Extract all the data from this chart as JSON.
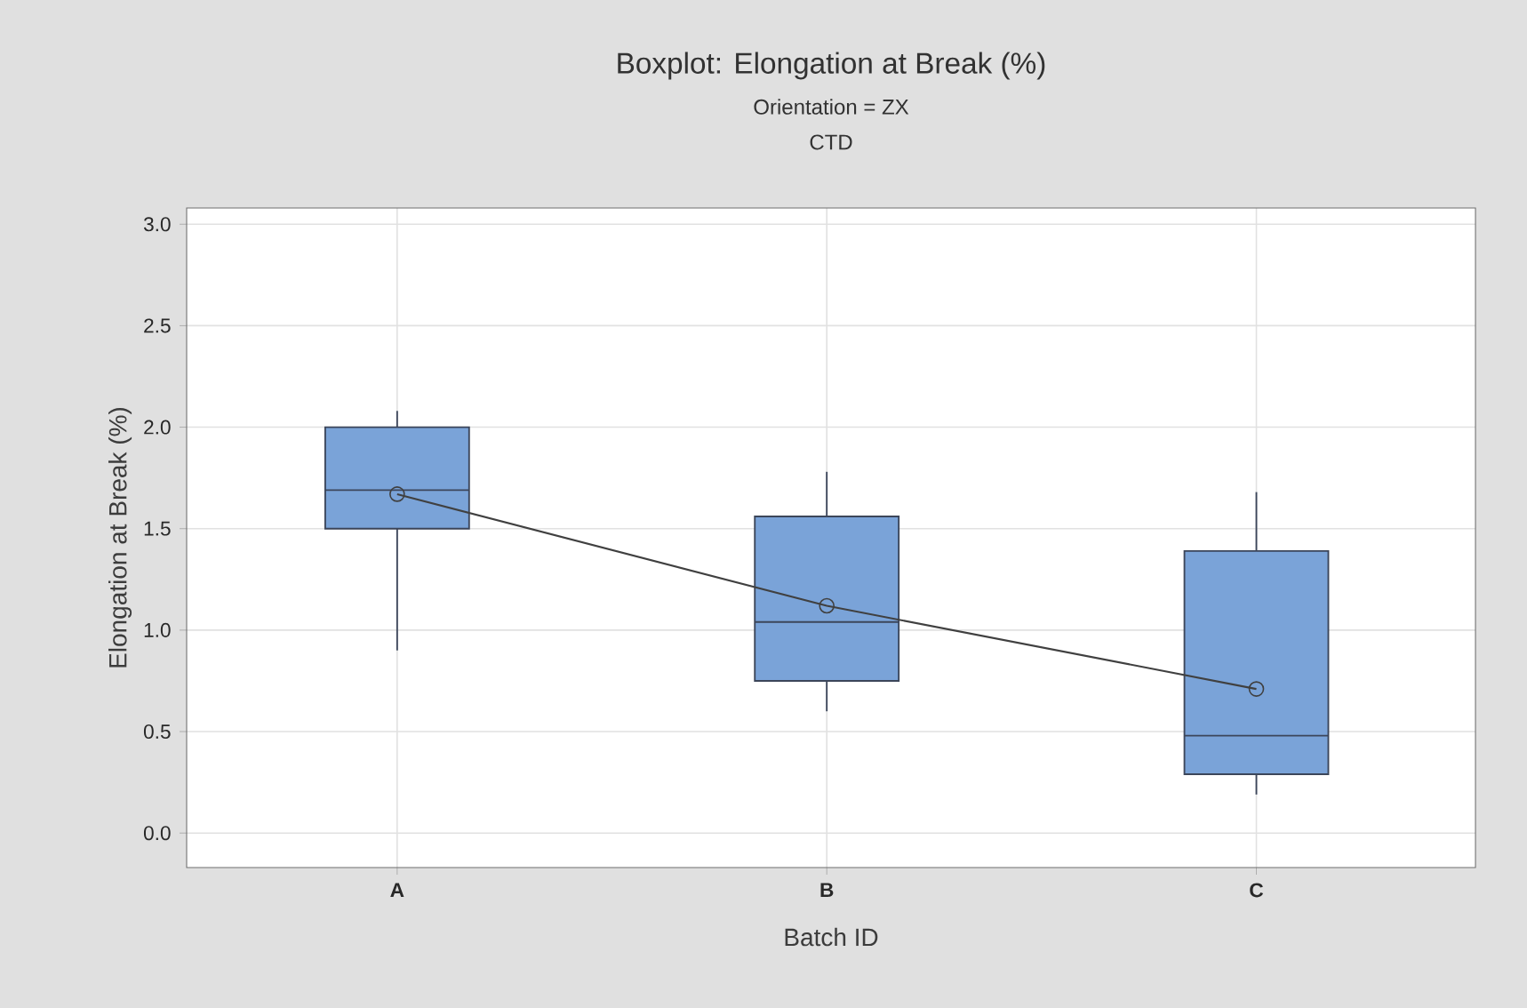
{
  "chart_data": {
    "type": "box",
    "title": "Boxplot: Elongation at Break (%)",
    "subtitle": "Orientation = ZX",
    "annotations": [
      "CTD"
    ],
    "xlabel": "Batch ID",
    "ylabel": "Elongation at Break (%)",
    "categories": [
      "A",
      "B",
      "C"
    ],
    "color": "#7aa3d8",
    "boxes": [
      {
        "low": 0.9,
        "q1": 1.5,
        "median": 1.69,
        "q3": 2.0,
        "high": 2.08
      },
      {
        "low": 0.6,
        "q1": 0.75,
        "median": 1.04,
        "q3": 1.56,
        "high": 1.78
      },
      {
        "low": 0.19,
        "q1": 0.29,
        "median": 0.48,
        "q3": 1.39,
        "high": 1.68
      }
    ],
    "series": [
      {
        "type": "line",
        "color": "#404040",
        "values": [
          1.67,
          1.12,
          0.71
        ]
      }
    ],
    "marker": "circle",
    "ylim": [
      -0.17,
      3.08
    ],
    "yticks": [
      {
        "value": 0,
        "label": "0.0"
      },
      {
        "value": 0.5,
        "label": "0.5"
      },
      {
        "value": 1,
        "label": "1.0"
      },
      {
        "value": 1.5,
        "label": "1.5"
      },
      {
        "value": 2,
        "label": "2.0"
      },
      {
        "value": 2.5,
        "label": "2.5"
      },
      {
        "value": 3,
        "label": "3.0"
      }
    ],
    "grid": true
  }
}
